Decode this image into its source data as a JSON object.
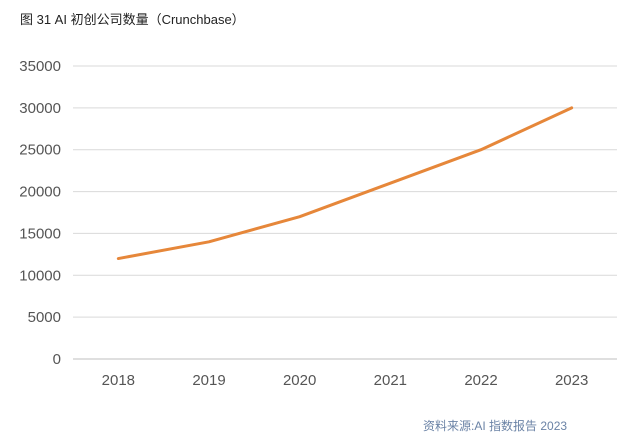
{
  "title": "图 31 AI 初创公司数量（Crunchbase）",
  "source": "资料来源:AI 指数报告 2023",
  "chart_data": {
    "type": "line",
    "title": "图 31 AI 初创公司数量（Crunchbase）",
    "x": [
      "2018",
      "2019",
      "2020",
      "2021",
      "2022",
      "2023"
    ],
    "series": [
      {
        "values": [
          12000,
          14000,
          17000,
          21000,
          25000,
          30000
        ],
        "color": "#e6873a"
      }
    ],
    "ylim": [
      0,
      35000
    ],
    "yticks": [
      0,
      5000,
      10000,
      15000,
      20000,
      25000,
      30000,
      35000
    ],
    "grid": true,
    "xlabel": "",
    "ylabel": ""
  }
}
